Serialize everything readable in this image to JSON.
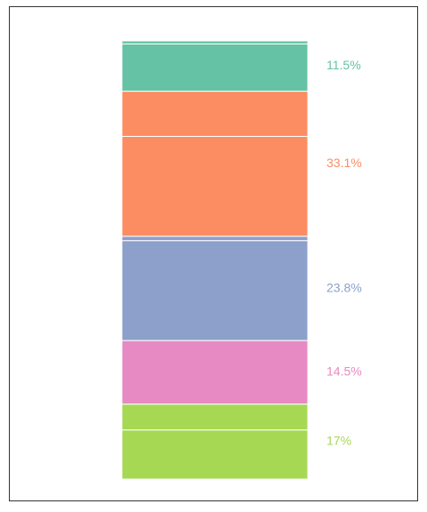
{
  "chart_data": {
    "type": "bar",
    "stacked": true,
    "orientation": "vertical",
    "categories": [
      ""
    ],
    "total_value": 1,
    "series": [
      {
        "color": "#66c2a5",
        "label": "11.5%",
        "value": 0.115,
        "segments": [
          0.007,
          0.108
        ]
      },
      {
        "color": "#fc8d62",
        "label": "33.1%",
        "value": 0.331,
        "segments": [
          0.103,
          0.228
        ]
      },
      {
        "color": "#8da0cb",
        "label": "23.8%",
        "value": 0.238,
        "segments": [
          0.01,
          0.228
        ]
      },
      {
        "color": "#e78ac3",
        "label": "14.5%",
        "value": 0.145,
        "segments": [
          0.145
        ]
      },
      {
        "color": "#a6d854",
        "label": "17%",
        "value": 0.171,
        "segments": [
          0.059,
          0.112
        ]
      }
    ],
    "legend": "none",
    "grid": false,
    "axes": "none"
  }
}
